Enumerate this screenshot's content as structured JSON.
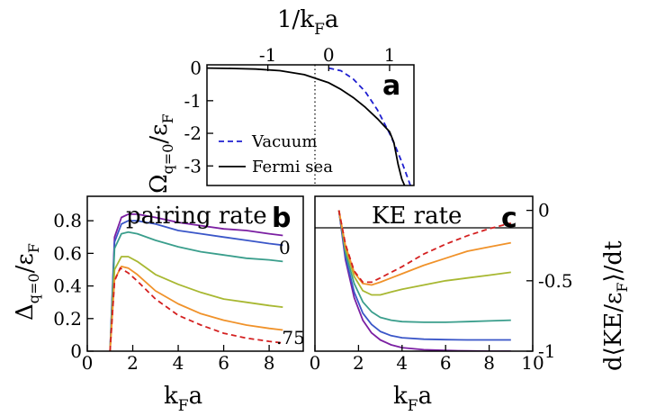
{
  "chart_data": [
    {
      "panel": "a",
      "type": "line",
      "xlabel_top": "1/k_Fa",
      "ylabel": "Ω_q=0/ε_F",
      "xlim": [
        -2.0,
        1.4
      ],
      "ylim": [
        -3.6,
        0.1
      ],
      "xticks": [
        "-1",
        "0",
        "1"
      ],
      "yticks": [
        "0",
        "-1",
        "-2",
        "-3"
      ],
      "reference_line_x": 0,
      "legend": [
        "Vacuum",
        "Fermi sea"
      ],
      "legend_position": "bottom-left",
      "series": [
        {
          "name": "Vacuum",
          "style": "dashed",
          "color": "#1f1fd0",
          "x": [
            0.0,
            0.2,
            0.4,
            0.6,
            0.8,
            1.0,
            1.1,
            1.2,
            1.3,
            1.4
          ],
          "y": [
            0.0,
            -0.08,
            -0.33,
            -0.72,
            -1.28,
            -2.0,
            -2.42,
            -2.88,
            -3.38,
            -3.9
          ]
        },
        {
          "name": "Fermi sea",
          "style": "solid",
          "color": "#000000",
          "x": [
            -2.0,
            -1.6,
            -1.2,
            -0.8,
            -0.4,
            0.0,
            0.2,
            0.4,
            0.6,
            0.8,
            1.0,
            1.07,
            1.14,
            1.2,
            1.28
          ],
          "y": [
            0.0,
            -0.01,
            -0.03,
            -0.08,
            -0.2,
            -0.45,
            -0.65,
            -0.9,
            -1.2,
            -1.55,
            -1.95,
            -2.28,
            -2.95,
            -3.4,
            -3.75
          ]
        }
      ],
      "label": "a"
    },
    {
      "panel": "b",
      "type": "line",
      "title": "pairing rate",
      "xlabel": "k_Fa",
      "ylabel": "Δ_q=0/ε_F",
      "xlim": [
        0,
        9.5
      ],
      "ylim": [
        0,
        0.95
      ],
      "xticks": [
        "0",
        "2",
        "4",
        "6",
        "8"
      ],
      "yticks": [
        "0",
        "0.2",
        "0.4",
        "0.6",
        "0.8"
      ],
      "annotations": [
        "0",
        ".75"
      ],
      "label": "b",
      "series": [
        {
          "color": "#7b1fa2",
          "style": "solid",
          "x": [
            1.0,
            1.2,
            1.5,
            1.8,
            2.2,
            3,
            4,
            5,
            6,
            7,
            8,
            8.6
          ],
          "y": [
            0,
            0.7,
            0.82,
            0.84,
            0.84,
            0.82,
            0.79,
            0.77,
            0.75,
            0.74,
            0.72,
            0.71
          ]
        },
        {
          "color": "#3a56c8",
          "style": "solid",
          "x": [
            1.0,
            1.2,
            1.5,
            1.8,
            2.2,
            3,
            4,
            5,
            6,
            7,
            8,
            8.6
          ],
          "y": [
            0,
            0.67,
            0.78,
            0.8,
            0.8,
            0.78,
            0.74,
            0.72,
            0.7,
            0.68,
            0.66,
            0.65
          ]
        },
        {
          "color": "#3a9e8c",
          "style": "solid",
          "x": [
            1.0,
            1.2,
            1.5,
            1.8,
            2.2,
            3,
            4,
            5,
            6,
            7,
            8,
            8.6
          ],
          "y": [
            0,
            0.63,
            0.72,
            0.73,
            0.72,
            0.68,
            0.64,
            0.61,
            0.59,
            0.57,
            0.56,
            0.55
          ]
        },
        {
          "color": "#a8b832",
          "style": "solid",
          "x": [
            1.0,
            1.2,
            1.5,
            1.8,
            2.2,
            3,
            4,
            5,
            6,
            7,
            8,
            8.6
          ],
          "y": [
            0,
            0.5,
            0.58,
            0.58,
            0.55,
            0.47,
            0.41,
            0.36,
            0.32,
            0.3,
            0.28,
            0.27
          ]
        },
        {
          "color": "#f0922a",
          "style": "solid",
          "x": [
            1.0,
            1.2,
            1.5,
            1.8,
            2.2,
            3,
            4,
            5,
            6,
            7,
            8,
            8.6
          ],
          "y": [
            0,
            0.44,
            0.52,
            0.51,
            0.47,
            0.37,
            0.29,
            0.23,
            0.19,
            0.16,
            0.14,
            0.13
          ]
        },
        {
          "color": "#d42020",
          "style": "dashed",
          "x": [
            1.0,
            1.2,
            1.45,
            1.8,
            2.2,
            3,
            4,
            5,
            6,
            7,
            8,
            8.6
          ],
          "y": [
            0,
            0.43,
            0.51,
            0.48,
            0.43,
            0.32,
            0.22,
            0.16,
            0.11,
            0.08,
            0.06,
            0.05
          ]
        }
      ]
    },
    {
      "panel": "c",
      "type": "line",
      "title": "KE rate",
      "xlabel": "k_Fa",
      "ylabel": "d⟨KE/ε_F⟩/dt",
      "xlim": [
        0,
        10
      ],
      "ylim": [
        -1.0,
        0.1
      ],
      "xticks": [
        "0",
        "2",
        "4",
        "6",
        "8",
        "10"
      ],
      "yticks": [
        "0",
        "-0.5",
        "-1"
      ],
      "reference_line_y": 0,
      "label": "c",
      "series": [
        {
          "color": "#7b1fa2",
          "style": "solid",
          "x": [
            1.1,
            1.4,
            1.8,
            2.2,
            2.6,
            3,
            3.5,
            4,
            5,
            6,
            7,
            8,
            9
          ],
          "y": [
            0,
            -0.35,
            -0.62,
            -0.78,
            -0.87,
            -0.92,
            -0.955,
            -0.975,
            -0.99,
            -0.995,
            -0.998,
            -1.0,
            -1.0
          ]
        },
        {
          "color": "#3a56c8",
          "style": "solid",
          "x": [
            1.1,
            1.4,
            1.8,
            2.2,
            2.6,
            3,
            3.5,
            4,
            5,
            6,
            7,
            8,
            9
          ],
          "y": [
            0,
            -0.33,
            -0.58,
            -0.73,
            -0.81,
            -0.86,
            -0.89,
            -0.905,
            -0.915,
            -0.918,
            -0.92,
            -0.92,
            -0.92
          ]
        },
        {
          "color": "#3a9e8c",
          "style": "solid",
          "x": [
            1.1,
            1.4,
            1.8,
            2.2,
            2.6,
            3,
            3.5,
            4,
            5,
            6,
            7,
            8,
            9
          ],
          "y": [
            0,
            -0.3,
            -0.52,
            -0.65,
            -0.72,
            -0.76,
            -0.78,
            -0.79,
            -0.795,
            -0.795,
            -0.79,
            -0.785,
            -0.78
          ]
        },
        {
          "color": "#a8b832",
          "style": "solid",
          "x": [
            1.1,
            1.4,
            1.8,
            2.2,
            2.6,
            3,
            3.5,
            4,
            5,
            6,
            7,
            8,
            9
          ],
          "y": [
            0,
            -0.27,
            -0.47,
            -0.57,
            -0.6,
            -0.6,
            -0.58,
            -0.56,
            -0.53,
            -0.5,
            -0.48,
            -0.46,
            -0.44
          ]
        },
        {
          "color": "#f0922a",
          "style": "solid",
          "x": [
            1.1,
            1.4,
            1.8,
            2.2,
            2.6,
            3,
            3.5,
            4,
            5,
            6,
            7,
            8,
            9
          ],
          "y": [
            0,
            -0.25,
            -0.44,
            -0.52,
            -0.53,
            -0.51,
            -0.48,
            -0.45,
            -0.39,
            -0.34,
            -0.29,
            -0.26,
            -0.23
          ]
        },
        {
          "color": "#d42020",
          "style": "dashed",
          "x": [
            1.1,
            1.4,
            1.8,
            2.2,
            2.6,
            3,
            3.5,
            4,
            5,
            6,
            7,
            8,
            9
          ],
          "y": [
            0,
            -0.24,
            -0.43,
            -0.51,
            -0.51,
            -0.48,
            -0.44,
            -0.4,
            -0.31,
            -0.24,
            -0.18,
            -0.13,
            -0.09
          ]
        }
      ]
    }
  ]
}
